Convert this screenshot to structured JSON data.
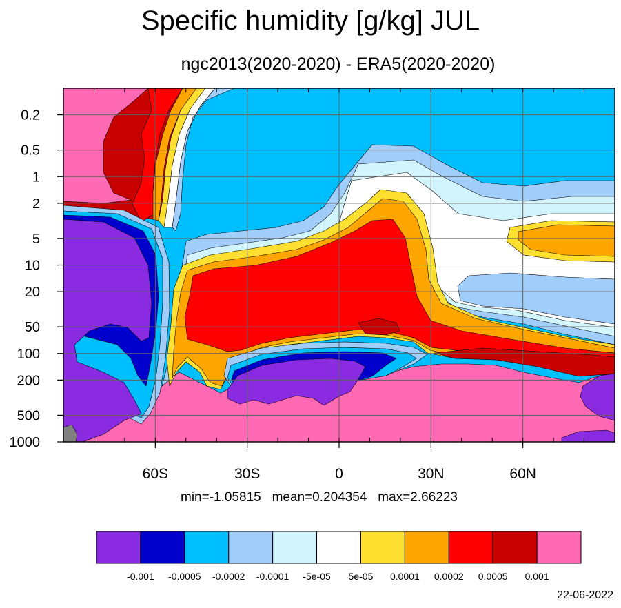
{
  "title": "Specific humidity [g/kg] JUL",
  "subtitle": "ngc2013(2020-2020) - ERA5(2020-2020)",
  "stats": {
    "min_label": "min=-1.05815",
    "mean_label": "mean=0.204354",
    "max_label": "max=2.66223"
  },
  "date": "22-06-2022",
  "colors": {
    "c1": "#8a2be2",
    "c2": "#0000cd",
    "c3": "#00bfff",
    "c4": "#a0cdfa",
    "c5": "#d2f4fc",
    "c6": "#ffffff",
    "c7": "#ffe030",
    "c8": "#ffa500",
    "c9": "#ff0000",
    "c10": "#c80000",
    "c11": "#ff69b4",
    "missing": "#808080"
  },
  "chart_data": {
    "type": "heatmap",
    "title": "Specific humidity [g/kg] JUL",
    "subtitle": "ngc2013(2020-2020) - ERA5(2020-2020)",
    "xlabel": "",
    "ylabel": "",
    "x_ticks": [
      {
        "value": -60,
        "label": "60S"
      },
      {
        "value": -30,
        "label": "30S"
      },
      {
        "value": 0,
        "label": "0"
      },
      {
        "value": 30,
        "label": "30N"
      },
      {
        "value": 60,
        "label": "60N"
      }
    ],
    "y_ticks": [
      0.2,
      0.5,
      1,
      2,
      5,
      10,
      20,
      50,
      100,
      200,
      500,
      1000
    ],
    "y_scale": "log",
    "y_reversed": true,
    "xlim": [
      -90,
      90
    ],
    "ylim": [
      1000,
      0.1
    ],
    "grid": true,
    "legend_position": "bottom",
    "contour_levels": [
      "-0.001",
      "-0.0005",
      "-0.0002",
      "-0.0001",
      "-5e-05",
      "5e-05",
      "0.0001",
      "0.0002",
      "0.0005",
      "0.001"
    ],
    "colorbar_colors": [
      "#8a2be2",
      "#0000cd",
      "#00bfff",
      "#a0cdfa",
      "#d2f4fc",
      "#ffffff",
      "#ffe030",
      "#ffa500",
      "#ff0000",
      "#c80000",
      "#ff69b4"
    ],
    "min": -1.05815,
    "mean": 0.204354,
    "max": 2.66223
  }
}
